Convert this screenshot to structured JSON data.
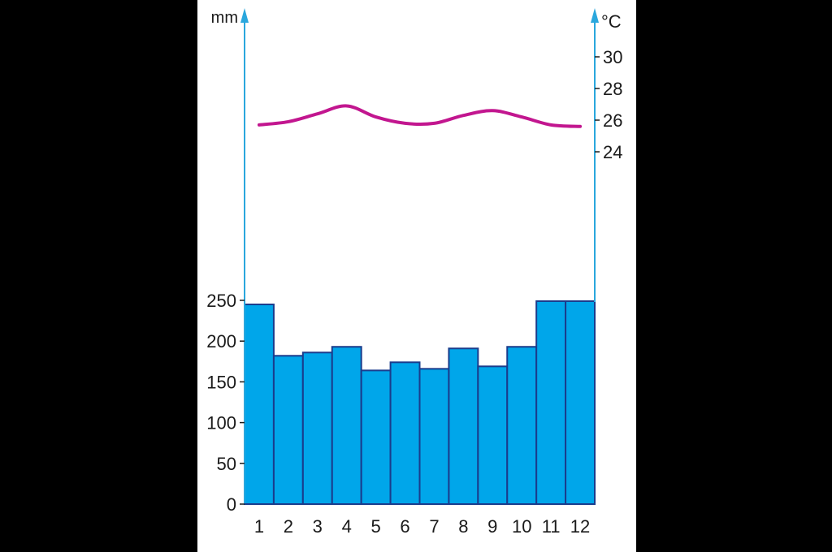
{
  "chart_data": {
    "type": "bar",
    "categories": [
      "1",
      "2",
      "3",
      "4",
      "5",
      "6",
      "7",
      "8",
      "9",
      "10",
      "11",
      "12"
    ],
    "series": [
      {
        "values": [
          245,
          182,
          186,
          193,
          164,
          174,
          166,
          191,
          169,
          193,
          249,
          249
        ],
        "color": "#00a6ea",
        "axis": "left"
      },
      {
        "type": "line",
        "values": [
          25.7,
          25.9,
          26.4,
          26.9,
          26.2,
          25.8,
          25.8,
          26.3,
          26.6,
          26.2,
          25.7,
          25.6
        ],
        "color": "#c2168f",
        "axis": "right"
      }
    ],
    "left_axis": {
      "unit": "mm",
      "ticks": [
        0,
        50,
        100,
        150,
        200,
        250
      ],
      "range": [
        0,
        250
      ]
    },
    "right_axis": {
      "unit": "°C",
      "ticks": [
        24,
        26,
        28,
        30
      ],
      "range": [
        24,
        30
      ]
    },
    "axis_color": "#2aa7dd",
    "bar_edge_color": "#1a3c8c",
    "grid": false,
    "legend": "none"
  }
}
